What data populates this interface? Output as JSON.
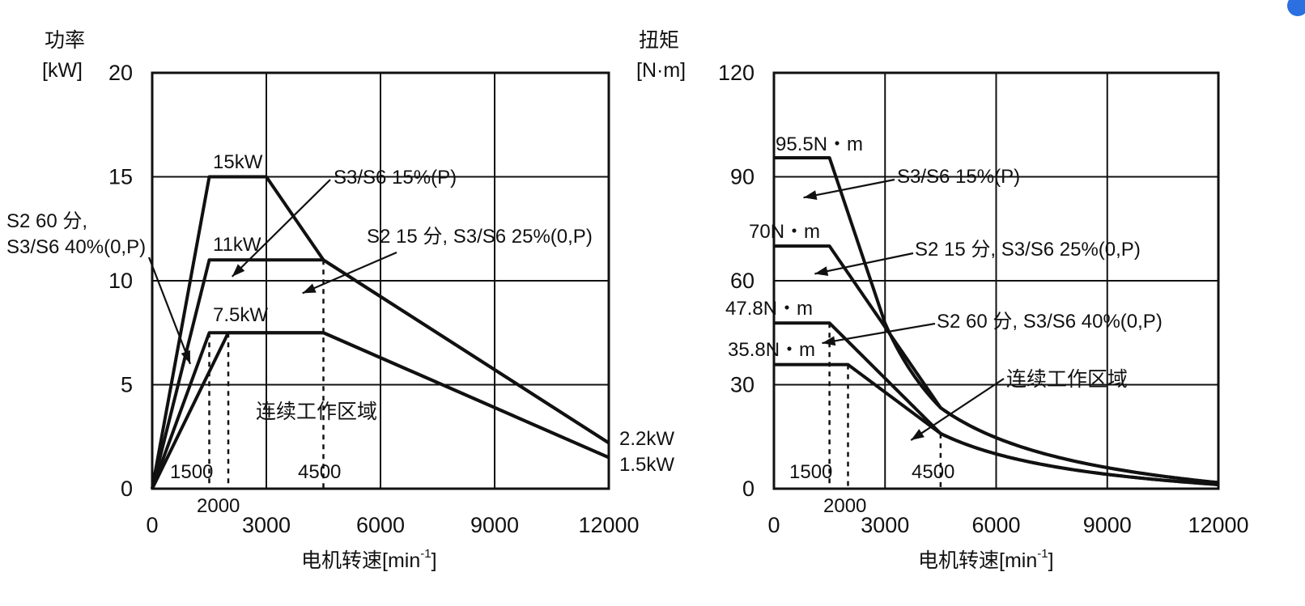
{
  "chart_data": [
    {
      "type": "line",
      "y_unit_title": "功率",
      "y_unit": "[kW]",
      "xlabel": "电机转速[min",
      "xlabel_sup": "-1",
      "xlim": [
        0,
        12000
      ],
      "ylim": [
        0,
        20
      ],
      "x_ticks": [
        0,
        3000,
        6000,
        9000,
        12000
      ],
      "y_ticks": [
        0,
        5,
        10,
        15,
        20
      ],
      "x_tick_labels": [
        "0",
        "3000",
        "6000",
        "9000",
        "12000"
      ],
      "y_tick_labels": [
        "0",
        "5",
        "10",
        "15",
        "20"
      ],
      "grid": true,
      "series": [
        {
          "name": "S3/S6 15%(P)",
          "x": [
            0,
            1500,
            3000,
            4500,
            12000
          ],
          "y": [
            0,
            15,
            15,
            11,
            2.2
          ]
        },
        {
          "name": "S2 15 分, S3/S6 25%(0,P)",
          "x": [
            0,
            1500,
            4500,
            12000
          ],
          "y": [
            0,
            11,
            11,
            2.2
          ]
        },
        {
          "name": "S2 60 分, S3/S6 40%(0,P)",
          "x": [
            0,
            1500,
            4500,
            12000
          ],
          "y": [
            0,
            7.5,
            7.5,
            1.5
          ]
        },
        {
          "name": "连续工作区域",
          "x": [
            0,
            2000,
            4500,
            12000
          ],
          "y": [
            0,
            7.5,
            7.5,
            1.5
          ]
        }
      ],
      "reference_lines_x": [
        1500,
        2000,
        4500
      ],
      "ref_labels": [
        "1500",
        "2000",
        "4500"
      ],
      "value_labels": [
        "15kW",
        "11kW",
        "7.5kW",
        "2.2kW",
        "1.5kW"
      ],
      "annotations": [
        "S3/S6 15%(P)",
        "S2 15 分, S3/S6 25%(0,P)",
        "S2 60 分,",
        "S3/S6 40%(0,P)",
        "连续工作区域"
      ]
    },
    {
      "type": "line",
      "y_unit_title": "扭矩",
      "y_unit": "[N·m]",
      "xlabel": "电机转速[min",
      "xlabel_sup": "-1",
      "xlim": [
        0,
        12000
      ],
      "ylim": [
        0,
        120
      ],
      "x_ticks": [
        0,
        3000,
        6000,
        9000,
        12000
      ],
      "y_ticks": [
        0,
        30,
        60,
        90,
        120
      ],
      "x_tick_labels": [
        "0",
        "3000",
        "6000",
        "9000",
        "12000"
      ],
      "y_tick_labels": [
        "0",
        "30",
        "60",
        "90",
        "120"
      ],
      "grid": true,
      "series": [
        {
          "name": "S3/S6 15%(P)",
          "plateau": 95.5,
          "x_start": 0,
          "x_knee": 1500,
          "power_kw_curve": [
            [
              3000,
              15
            ],
            [
              4500,
              11
            ],
            [
              12000,
              2.2
            ]
          ]
        },
        {
          "name": "S2 15 分, S3/S6 25%(0,P)",
          "plateau": 70,
          "x_start": 0,
          "x_knee": 1500,
          "power_kw_curve": [
            [
              4500,
              11
            ],
            [
              12000,
              2.2
            ]
          ]
        },
        {
          "name": "S2 60 分, S3/S6 40%(0,P)",
          "plateau": 47.8,
          "x_start": 0,
          "x_knee": 1500,
          "power_kw_curve": [
            [
              4500,
              7.5
            ],
            [
              12000,
              1.5
            ]
          ]
        },
        {
          "name": "连续工作区域",
          "plateau": 35.8,
          "x_start": 0,
          "x_knee": 2000,
          "power_kw_curve": [
            [
              4500,
              7.5
            ],
            [
              12000,
              1.5
            ]
          ]
        }
      ],
      "reference_lines_x": [
        1500,
        2000,
        4500
      ],
      "ref_labels": [
        "1500",
        "2000",
        "4500"
      ],
      "value_labels": [
        "95.5N・m",
        "70N・m",
        "47.8N・m",
        "35.8N・m"
      ],
      "annotations": [
        "S3/S6 15%(P)",
        "S2 15 分, S3/S6 25%(0,P)",
        "S2 60 分, S3/S6 40%(0,P)",
        "连续工作区域"
      ]
    }
  ],
  "icons": {
    "corner_badge": "assistant-badge-icon",
    "corner_badge_color": "#2b6fe0"
  }
}
